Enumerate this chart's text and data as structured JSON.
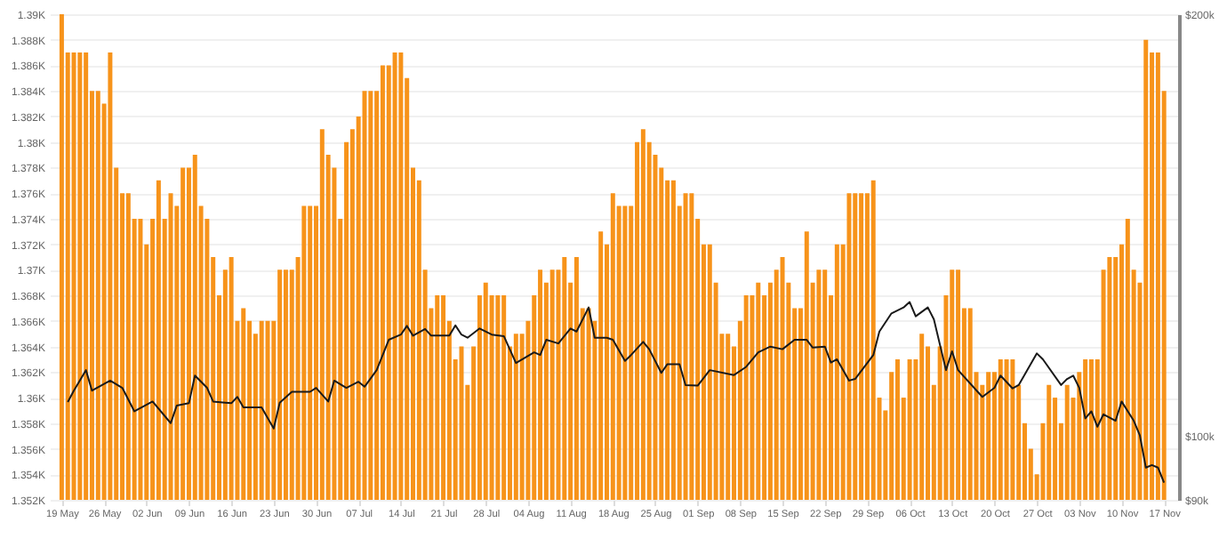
{
  "chart_data": {
    "type": "bar",
    "grid": "y",
    "log": "y2",
    "x": [
      "--05-19",
      "--05-20",
      "--05-21",
      "--05-22",
      "--05-23",
      "--05-24",
      "--05-25",
      "--05-26",
      "--05-27",
      "--05-28",
      "--05-29",
      "--05-30",
      "--05-31",
      "--06-01",
      "--06-02",
      "--06-03",
      "--06-04",
      "--06-05",
      "--06-06",
      "--06-07",
      "--06-08",
      "--06-09",
      "--06-10",
      "--06-11",
      "--06-12",
      "--06-13",
      "--06-14",
      "--06-15",
      "--06-16",
      "--06-17",
      "--06-18",
      "--06-19",
      "--06-20",
      "--06-21",
      "--06-22",
      "--06-23",
      "--06-24",
      "--06-25",
      "--06-26",
      "--06-27",
      "--06-28",
      "--06-29",
      "--06-30",
      "--07-01",
      "--07-02",
      "--07-03",
      "--07-04",
      "--07-05",
      "--07-06",
      "--07-07",
      "--07-08",
      "--07-09",
      "--07-10",
      "--07-11",
      "--07-12",
      "--07-13",
      "--07-14",
      "--07-15",
      "--07-16",
      "--07-17",
      "--07-18",
      "--07-19",
      "--07-20",
      "--07-21",
      "--07-22",
      "--07-23",
      "--07-24",
      "--07-25",
      "--07-26",
      "--07-27",
      "--07-28",
      "--07-29",
      "--07-30",
      "--07-31",
      "--08-01",
      "--08-02",
      "--08-03",
      "--08-04",
      "--08-05",
      "--08-06",
      "--08-07",
      "--08-08",
      "--08-09",
      "--08-10",
      "--08-11",
      "--08-12",
      "--08-13",
      "--08-14",
      "--08-15",
      "--08-16",
      "--08-17",
      "--08-18",
      "--08-19",
      "--08-20",
      "--08-21",
      "--08-22",
      "--08-23",
      "--08-24",
      "--08-25",
      "--08-26",
      "--08-27",
      "--08-28",
      "--08-29",
      "--08-30",
      "--08-31",
      "--09-01",
      "--09-02",
      "--09-03",
      "--09-04",
      "--09-05",
      "--09-06",
      "--09-07",
      "--09-08",
      "--09-09",
      "--09-10",
      "--09-11",
      "--09-12",
      "--09-13",
      "--09-14",
      "--09-15",
      "--09-16",
      "--09-17",
      "--09-18",
      "--09-19",
      "--09-20",
      "--09-21",
      "--09-22",
      "--09-23",
      "--09-24",
      "--09-25",
      "--09-26",
      "--09-27",
      "--09-28",
      "--09-29",
      "--09-30",
      "--10-01",
      "--10-02",
      "--10-03",
      "--10-04",
      "--10-05",
      "--10-06",
      "--10-07",
      "--10-08",
      "--10-09",
      "--10-10",
      "--10-11",
      "--10-12",
      "--10-13",
      "--10-14",
      "--10-15",
      "--10-16",
      "--10-17",
      "--10-18",
      "--10-19",
      "--10-20",
      "--10-21",
      "--10-22",
      "--10-23",
      "--10-24",
      "--10-25",
      "--10-26",
      "--10-27",
      "--10-28",
      "--10-29",
      "--10-30",
      "--10-31",
      "--11-01",
      "--11-02",
      "--11-03",
      "--11-04",
      "--11-05",
      "--11-06",
      "--11-07",
      "--11-08",
      "--11-09",
      "--11-10",
      "--11-11",
      "--11-12",
      "--11-13",
      "--11-14",
      "--11-15",
      "--11-16",
      "--11-17"
    ],
    "xlim": [
      "--05-18T12:00",
      "--11-18T00:00"
    ],
    "xticks": [
      {
        "value": "--05-19",
        "label": "19 May"
      },
      {
        "value": "--05-26",
        "label": "26 May"
      },
      {
        "value": "--06-02",
        "label": "02 Jun"
      },
      {
        "value": "--06-09",
        "label": "09 Jun"
      },
      {
        "value": "--06-16",
        "label": "16 Jun"
      },
      {
        "value": "--06-23",
        "label": "23 Jun"
      },
      {
        "value": "--06-30",
        "label": "30 Jun"
      },
      {
        "value": "--07-07",
        "label": "07 Jul"
      },
      {
        "value": "--07-14",
        "label": "14 Jul"
      },
      {
        "value": "--07-21",
        "label": "21 Jul"
      },
      {
        "value": "--07-28",
        "label": "28 Jul"
      },
      {
        "value": "--08-04",
        "label": "04 Aug"
      },
      {
        "value": "--08-11",
        "label": "11 Aug"
      },
      {
        "value": "--08-18",
        "label": "18 Aug"
      },
      {
        "value": "--08-25",
        "label": "25 Aug"
      },
      {
        "value": "--09-01",
        "label": "01 Sep"
      },
      {
        "value": "--09-08",
        "label": "08 Sep"
      },
      {
        "value": "--09-15",
        "label": "15 Sep"
      },
      {
        "value": "--09-22",
        "label": "22 Sep"
      },
      {
        "value": "--09-29",
        "label": "29 Sep"
      },
      {
        "value": "--10-06",
        "label": "06 Oct"
      },
      {
        "value": "--10-13",
        "label": "13 Oct"
      },
      {
        "value": "--10-20",
        "label": "20 Oct"
      },
      {
        "value": "--10-27",
        "label": "27 Oct"
      },
      {
        "value": "--11-03",
        "label": "03 Nov"
      },
      {
        "value": "--11-10",
        "label": "10 Nov"
      },
      {
        "value": "--11-17",
        "label": "17 Nov"
      }
    ],
    "ylim": [
      1352,
      1390
    ],
    "yticks": [
      {
        "value": 1352,
        "label": "1.352K"
      },
      {
        "value": 1354,
        "label": "1.354K"
      },
      {
        "value": 1356,
        "label": "1.356K"
      },
      {
        "value": 1358,
        "label": "1.358K"
      },
      {
        "value": 1360,
        "label": "1.36K"
      },
      {
        "value": 1362,
        "label": "1.362K"
      },
      {
        "value": 1364,
        "label": "1.364K"
      },
      {
        "value": 1366,
        "label": "1.366K"
      },
      {
        "value": 1368,
        "label": "1.368K"
      },
      {
        "value": 1370,
        "label": "1.37K"
      },
      {
        "value": 1372,
        "label": "1.372K"
      },
      {
        "value": 1374,
        "label": "1.374K"
      },
      {
        "value": 1376,
        "label": "1.376K"
      },
      {
        "value": 1378,
        "label": "1.378K"
      },
      {
        "value": 1380,
        "label": "1.38K"
      },
      {
        "value": 1382,
        "label": "1.382K"
      },
      {
        "value": 1384,
        "label": "1.384K"
      },
      {
        "value": 1386,
        "label": "1.386K"
      },
      {
        "value": 1388,
        "label": "1.388K"
      },
      {
        "value": 1390,
        "label": "1.39K"
      }
    ],
    "y2lim": [
      90000,
      200000
    ],
    "y2ticks": [
      {
        "value": 90000,
        "label": "$90k"
      },
      {
        "value": 100000,
        "label": "$100k"
      },
      {
        "value": 200000,
        "label": "$200k"
      }
    ],
    "series": [
      {
        "color": "#f7931a",
        "values": [
          1390,
          1387,
          1387,
          1387,
          1387,
          1384,
          1384,
          1383,
          1387,
          1378,
          1376,
          1376,
          1374,
          1374,
          1372,
          1374,
          1377,
          1374,
          1376,
          1375,
          1378,
          1378,
          1379,
          1375,
          1374,
          1371,
          1368,
          1370,
          1371,
          1366,
          1367,
          1366,
          1365,
          1366,
          1366,
          1366,
          1370,
          1370,
          1370,
          1371,
          1375,
          1375,
          1375,
          1381,
          1379,
          1378,
          1374,
          1380,
          1381,
          1382,
          1384,
          1384,
          1384,
          1386,
          1386,
          1387,
          1387,
          1385,
          1378,
          1377,
          1370,
          1367,
          1368,
          1368,
          1366,
          1363,
          1364,
          1361,
          1364,
          1368,
          1369,
          1368,
          1368,
          1368,
          1364,
          1365,
          1365,
          1366,
          1368,
          1370,
          1369,
          1370,
          1370,
          1371,
          1369,
          1371,
          1367,
          1367,
          1366,
          1373,
          1372,
          1376,
          1375,
          1375,
          1375,
          1380,
          1381,
          1380,
          1379,
          1378,
          1377,
          1377,
          1375,
          1376,
          1376,
          1374,
          1372,
          1372,
          1369,
          1365,
          1365,
          1364,
          1366,
          1368,
          1368,
          1369,
          1368,
          1369,
          1370,
          1371,
          1369,
          1367,
          1367,
          1373,
          1369,
          1370,
          1370,
          1368,
          1372,
          1372,
          1376,
          1376,
          1376,
          1376,
          1377,
          1360,
          1359,
          1362,
          1363,
          1360,
          1363,
          1363,
          1365,
          1364,
          1361,
          1364,
          1368,
          1370,
          1370,
          1367,
          1367,
          1362,
          1361,
          1362,
          1362,
          1363,
          1363,
          1363,
          1361,
          1358,
          1356,
          1354,
          1358,
          1361,
          1360,
          1358,
          1361,
          1360,
          1362,
          1363,
          1363,
          1363,
          1370,
          1371,
          1371,
          1372,
          1374,
          1370,
          1369,
          1388,
          1387,
          1387,
          1384
        ]
      },
      {
        "type": "line",
        "axis": "y2",
        "color": "#1a1a1a",
        "x": [
          "--05-20",
          "--05-21",
          "--05-23",
          "--05-24",
          "--05-27",
          "--05-29",
          "--05-31",
          "--06-03",
          "--06-06",
          "--06-07",
          "--06-09",
          "--06-10",
          "--06-12",
          "--06-13",
          "--06-16",
          "--06-17",
          "--06-18",
          "--06-21",
          "--06-23",
          "--06-24",
          "--06-26",
          "--06-29",
          "--06-30",
          "--07-02",
          "--07-03",
          "--07-05",
          "--07-07",
          "--07-08",
          "--07-10",
          "--07-12",
          "--07-14",
          "--07-15",
          "--07-16",
          "--07-18",
          "--07-19",
          "--07-22",
          "--07-23",
          "--07-24",
          "--07-25",
          "--07-27",
          "--07-29",
          "--07-31",
          "--08-02",
          "--08-05",
          "--08-06",
          "--08-07",
          "--08-09",
          "--08-11",
          "--08-12",
          "--08-14",
          "--08-15",
          "--08-17",
          "--08-18",
          "--08-20",
          "--08-21",
          "--08-23",
          "--08-24",
          "--08-26",
          "--08-27",
          "--08-29",
          "--08-30",
          "--09-01",
          "--09-03",
          "--09-07",
          "--09-09",
          "--09-11",
          "--09-13",
          "--09-15",
          "--09-17",
          "--09-19",
          "--09-20",
          "--09-22",
          "--09-23",
          "--09-24",
          "--09-26",
          "--09-27",
          "--09-30",
          "--10-01",
          "--10-03",
          "--10-05",
          "--10-06",
          "--10-07",
          "--10-09",
          "--10-10",
          "--10-12",
          "--10-13",
          "--10-14",
          "--10-18",
          "--10-20",
          "--10-21",
          "--10-23",
          "--10-24",
          "--10-27",
          "--10-28",
          "--10-31",
          "--11-01",
          "--11-02",
          "--11-03",
          "--11-04",
          "--11-05",
          "--11-06",
          "--11-07",
          "--11-09",
          "--11-10",
          "--11-12",
          "--11-13",
          "--11-14",
          "--11-15",
          "--11-16",
          "--11-17"
        ],
        "values": [
          105700,
          107700,
          111400,
          107700,
          109500,
          108200,
          104100,
          105800,
          102100,
          105100,
          105500,
          110400,
          108200,
          105800,
          105500,
          106600,
          104800,
          104800,
          101200,
          105600,
          107500,
          107500,
          108200,
          105800,
          109500,
          108200,
          109300,
          108400,
          111400,
          117100,
          118100,
          119800,
          117900,
          119200,
          117900,
          117900,
          119900,
          118100,
          117500,
          119300,
          118100,
          117800,
          112700,
          114700,
          114200,
          117100,
          116400,
          119300,
          118700,
          123500,
          117500,
          117500,
          117100,
          113100,
          114200,
          116700,
          115300,
          110900,
          112500,
          112500,
          108700,
          108600,
          111400,
          110500,
          112000,
          114700,
          115800,
          115300,
          117100,
          117100,
          115600,
          115800,
          112800,
          113400,
          109500,
          109800,
          114200,
          118700,
          122300,
          123500,
          124600,
          121700,
          123500,
          121100,
          111400,
          114900,
          111400,
          106600,
          108200,
          110400,
          108100,
          108700,
          114500,
          113400,
          108700,
          109800,
          110400,
          108200,
          102900,
          104100,
          101500,
          103600,
          102500,
          105800,
          102500,
          100100,
          94900,
          95300,
          94900,
          92600
        ]
      }
    ]
  }
}
